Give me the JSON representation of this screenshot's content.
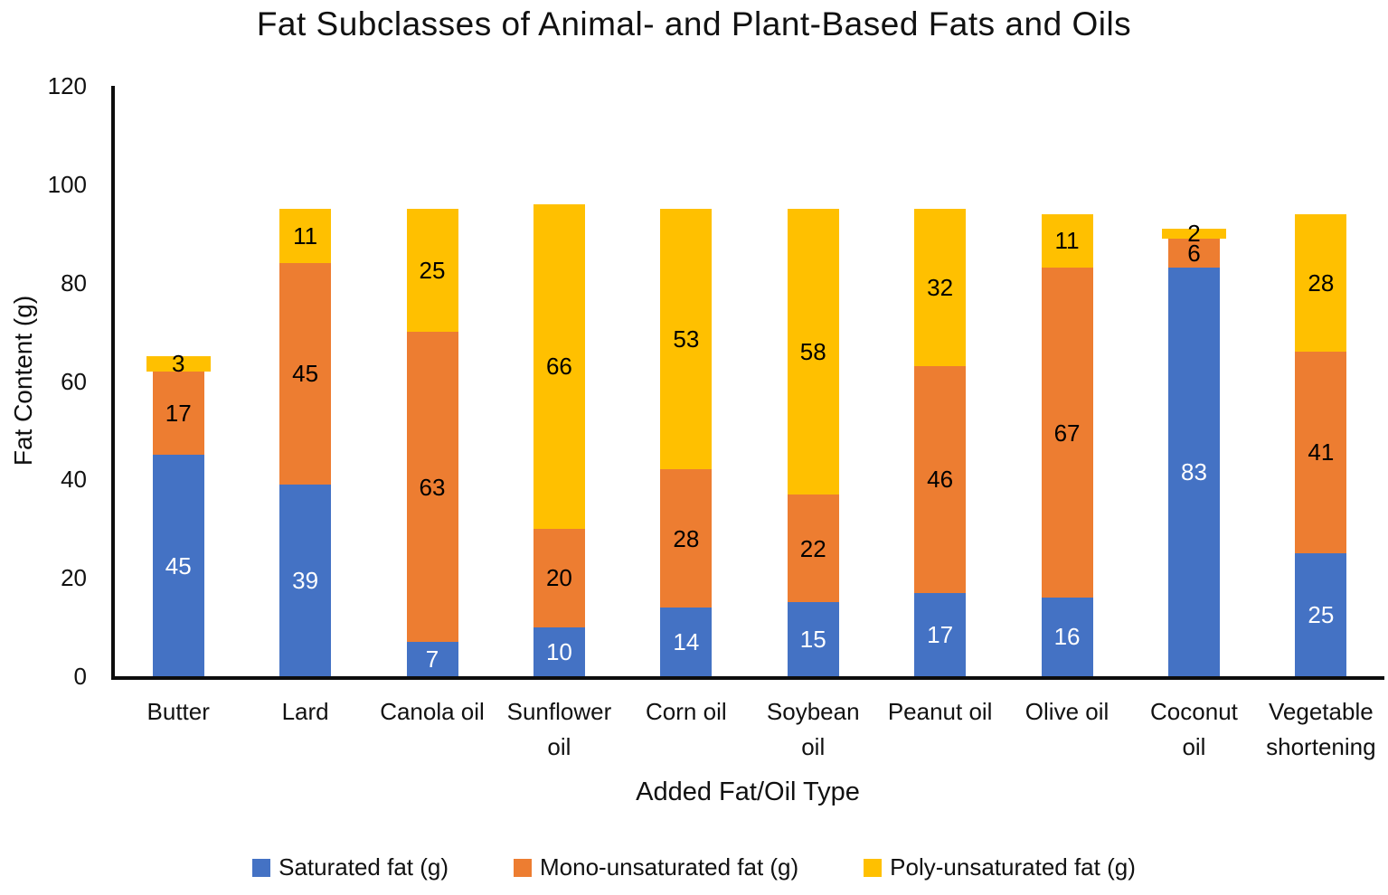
{
  "chart_data": {
    "type": "bar",
    "stacked": true,
    "title": "Fat Subclasses of Animal- and Plant-Based Fats and Oils",
    "xlabel": "Added Fat/Oil Type",
    "ylabel": "Fat Content (g)",
    "ylim": [
      0,
      120
    ],
    "yticks": [
      0,
      20,
      40,
      60,
      80,
      100,
      120
    ],
    "grid": false,
    "legend_position": "bottom",
    "axis_color": "#0d0d0d",
    "categories": [
      "Butter",
      "Lard",
      "Canola oil",
      "Sunflower oil",
      "Corn oil",
      "Soybean oil",
      "Peanut oil",
      "Olive oil",
      "Coconut oil",
      "Vegetable shortening"
    ],
    "series": [
      {
        "name": "Saturated fat (g)",
        "color": "#4472C4",
        "label_color": "#FFFFFF",
        "values": [
          45,
          39,
          7,
          10,
          14,
          15,
          17,
          16,
          83,
          25
        ]
      },
      {
        "name": "Mono-unsaturated fat (g)",
        "color": "#ED7D31",
        "label_color": "#000000",
        "values": [
          17,
          45,
          63,
          20,
          28,
          22,
          46,
          67,
          6,
          41
        ]
      },
      {
        "name": "Poly-unsaturated fat (g)",
        "color": "#FFC000",
        "label_color": "#000000",
        "values": [
          3,
          11,
          25,
          66,
          53,
          58,
          32,
          11,
          2,
          28
        ]
      }
    ]
  }
}
